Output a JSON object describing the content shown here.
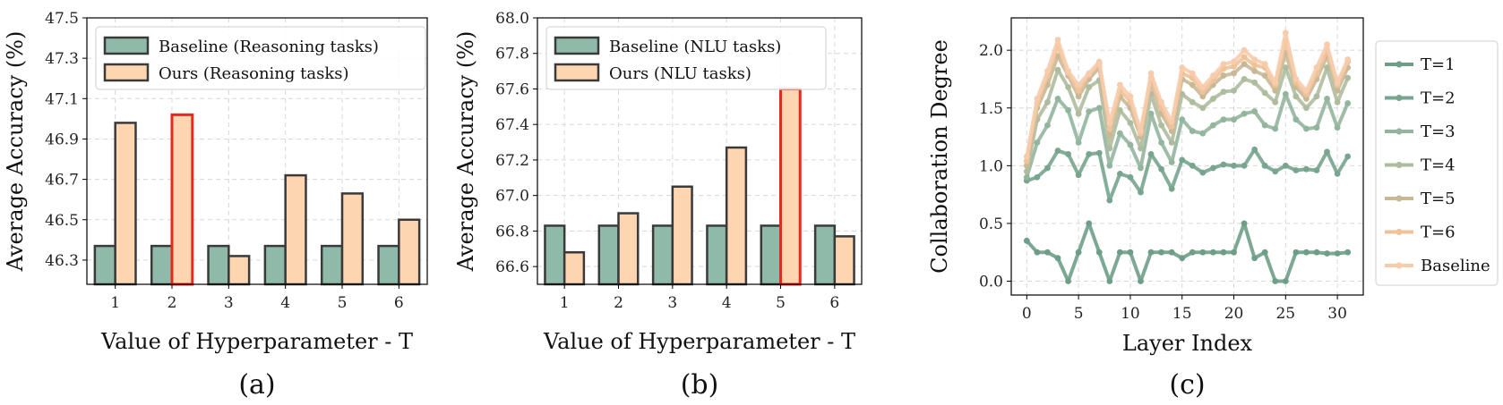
{
  "colors": {
    "baseline_bar": "#8fb9a8",
    "ours_bar": "#fdd5b1",
    "highlight": "#e8281e",
    "bar_edge": "#3a3a3a",
    "line_series": [
      "#6e9e88",
      "#78a58f",
      "#93b59e",
      "#aebc9e",
      "#c8b896",
      "#f0c298",
      "#f7ccac"
    ]
  },
  "chart_data": [
    {
      "type": "bar",
      "panel_label": "(a)",
      "xlabel": "Value of Hyperparameter - T",
      "ylabel": "Average Accuracy (%)",
      "ylim": [
        46.18,
        47.5
      ],
      "yticks": [
        "46.3",
        "46.5",
        "46.7",
        "46.9",
        "47.1",
        "47.3",
        "47.5"
      ],
      "categories": [
        "1",
        "2",
        "3",
        "4",
        "5",
        "6"
      ],
      "highlight_index": 1,
      "series": [
        {
          "name": "Baseline (Reasoning tasks)",
          "values": [
            46.37,
            46.37,
            46.37,
            46.37,
            46.37,
            46.37
          ]
        },
        {
          "name": "Ours (Reasoning tasks)",
          "values": [
            46.98,
            47.02,
            46.32,
            46.72,
            46.63,
            46.5
          ]
        }
      ],
      "legend": "top-left",
      "grid": true
    },
    {
      "type": "bar",
      "panel_label": "(b)",
      "xlabel": "Value of Hyperparameter - T",
      "ylabel": "Average Accuracy (%)",
      "ylim": [
        66.5,
        68.0
      ],
      "yticks": [
        "66.6",
        "66.8",
        "67.0",
        "67.2",
        "67.4",
        "67.6",
        "67.8",
        "68.0"
      ],
      "categories": [
        "1",
        "2",
        "3",
        "4",
        "5",
        "6"
      ],
      "highlight_index": 4,
      "series": [
        {
          "name": "Baseline (NLU tasks)",
          "values": [
            66.83,
            66.83,
            66.83,
            66.83,
            66.83,
            66.83
          ]
        },
        {
          "name": "Ours (NLU tasks)",
          "values": [
            66.68,
            66.9,
            67.05,
            67.27,
            67.6,
            66.77
          ]
        }
      ],
      "legend": "top-left",
      "grid": true
    },
    {
      "type": "line",
      "panel_label": "(c)",
      "xlabel": "Layer Index",
      "ylabel": "Collaboration Degree",
      "xlim": [
        -1.5,
        32.5
      ],
      "ylim": [
        -0.12,
        2.28
      ],
      "xticks": [
        "0",
        "5",
        "10",
        "15",
        "20",
        "25",
        "30"
      ],
      "yticks": [
        "0.0",
        "0.5",
        "1.0",
        "1.5",
        "2.0"
      ],
      "x": [
        0,
        1,
        2,
        3,
        4,
        5,
        6,
        7,
        8,
        9,
        10,
        11,
        12,
        13,
        14,
        15,
        16,
        17,
        18,
        19,
        20,
        21,
        22,
        23,
        24,
        25,
        26,
        27,
        28,
        29,
        30,
        31
      ],
      "series": [
        {
          "name": "T=1",
          "values": [
            0.35,
            0.25,
            0.25,
            0.2,
            0.0,
            0.25,
            0.5,
            0.25,
            0.0,
            0.25,
            0.25,
            0.0,
            0.25,
            0.25,
            0.25,
            0.2,
            0.25,
            0.25,
            0.25,
            0.25,
            0.25,
            0.5,
            0.2,
            0.25,
            0.0,
            0.0,
            0.25,
            0.25,
            0.25,
            0.24,
            0.24,
            0.25
          ]
        },
        {
          "name": "T=2",
          "values": [
            0.87,
            0.9,
            0.98,
            1.13,
            1.1,
            0.92,
            1.1,
            1.11,
            0.7,
            0.93,
            0.9,
            0.77,
            1.1,
            0.97,
            0.8,
            1.05,
            1.0,
            0.94,
            0.98,
            1.01,
            1.0,
            1.0,
            1.14,
            1.0,
            0.95,
            1.0,
            0.96,
            0.97,
            0.96,
            1.12,
            0.93,
            1.08
          ]
        },
        {
          "name": "T=3",
          "values": [
            0.9,
            1.2,
            1.35,
            1.58,
            1.48,
            1.2,
            1.47,
            1.5,
            1.0,
            1.28,
            1.18,
            0.98,
            1.45,
            1.2,
            1.03,
            1.4,
            1.3,
            1.28,
            1.35,
            1.4,
            1.4,
            1.45,
            1.47,
            1.35,
            1.32,
            1.62,
            1.4,
            1.32,
            1.33,
            1.58,
            1.33,
            1.54
          ]
        },
        {
          "name": "T=4",
          "values": [
            0.95,
            1.4,
            1.55,
            1.83,
            1.68,
            1.45,
            1.68,
            1.74,
            1.15,
            1.48,
            1.37,
            1.15,
            1.62,
            1.35,
            1.2,
            1.62,
            1.55,
            1.5,
            1.58,
            1.64,
            1.65,
            1.75,
            1.72,
            1.63,
            1.55,
            1.85,
            1.6,
            1.5,
            1.6,
            1.85,
            1.55,
            1.76
          ]
        },
        {
          "name": "T=5",
          "values": [
            1.0,
            1.5,
            1.7,
            1.95,
            1.78,
            1.6,
            1.75,
            1.85,
            1.26,
            1.6,
            1.5,
            1.25,
            1.72,
            1.45,
            1.3,
            1.75,
            1.7,
            1.6,
            1.7,
            1.78,
            1.8,
            1.88,
            1.82,
            1.78,
            1.65,
            1.98,
            1.68,
            1.58,
            1.75,
            1.95,
            1.65,
            1.85
          ]
        },
        {
          "name": "T=6",
          "values": [
            1.04,
            1.54,
            1.78,
            2.04,
            1.8,
            1.65,
            1.79,
            1.88,
            1.32,
            1.65,
            1.56,
            1.28,
            1.76,
            1.5,
            1.34,
            1.8,
            1.76,
            1.64,
            1.74,
            1.84,
            1.86,
            1.94,
            1.87,
            1.85,
            1.7,
            2.08,
            1.72,
            1.62,
            1.8,
            2.0,
            1.7,
            1.9
          ]
        },
        {
          "name": "Baseline",
          "values": [
            1.08,
            1.58,
            1.82,
            2.09,
            1.82,
            1.7,
            1.8,
            1.9,
            1.37,
            1.7,
            1.6,
            1.3,
            1.8,
            1.55,
            1.38,
            1.85,
            1.8,
            1.68,
            1.78,
            1.88,
            1.9,
            2.0,
            1.92,
            1.88,
            1.72,
            2.15,
            1.75,
            1.65,
            1.85,
            2.05,
            1.72,
            1.92
          ]
        }
      ],
      "legend": "right-outside",
      "grid": true
    }
  ]
}
